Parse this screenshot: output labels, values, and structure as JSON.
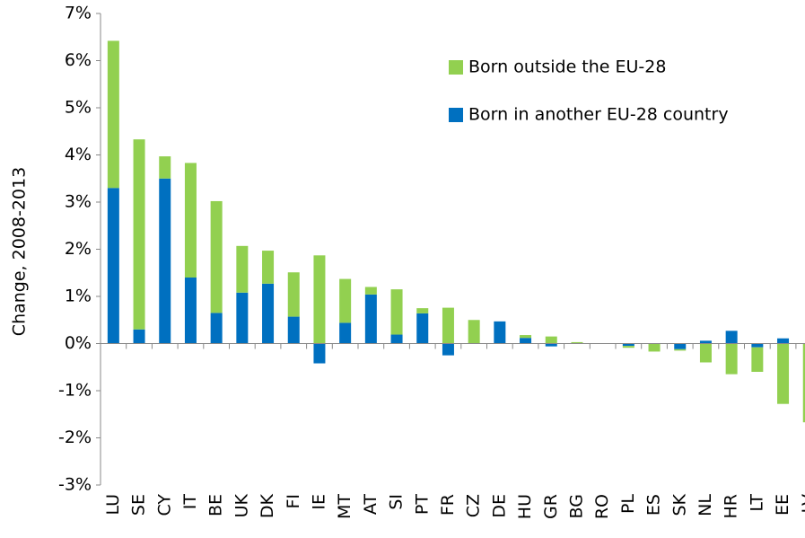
{
  "chart_data": {
    "type": "bar",
    "stacked": true,
    "y_label": "Change, 2008-2013",
    "categories": [
      "LU",
      "SE",
      "CY",
      "IT",
      "BE",
      "UK",
      "DK",
      "FI",
      "IE",
      "MT",
      "AT",
      "SI",
      "PT",
      "FR",
      "CZ",
      "DE",
      "HU",
      "GR",
      "BG",
      "RO",
      "PL",
      "ES",
      "SK",
      "NL",
      "HR",
      "LT",
      "EE",
      "LV"
    ],
    "series": [
      {
        "name": "Born in another EU-28 country",
        "color": "#0070c0",
        "values": [
          3.3,
          0.3,
          3.5,
          1.4,
          0.65,
          1.08,
          1.27,
          0.57,
          -0.42,
          0.44,
          1.04,
          0.19,
          0.64,
          -0.25,
          0,
          0.47,
          0.12,
          -0.06,
          0,
          0,
          -0.05,
          0,
          -0.12,
          0.06,
          0.27,
          -0.08,
          0.11,
          0
        ]
      },
      {
        "name": "Born outside the EU-28",
        "color": "#92d050",
        "values": [
          3.12,
          4.03,
          0.47,
          2.43,
          2.37,
          0.99,
          0.7,
          0.94,
          1.87,
          0.93,
          0.16,
          0.96,
          0.11,
          0.76,
          0.5,
          0,
          0.06,
          0.15,
          0.03,
          0,
          -0.04,
          -0.17,
          -0.03,
          -0.4,
          -0.65,
          -0.52,
          -1.28,
          -1.67
        ]
      }
    ],
    "ylim": [
      -3,
      7
    ],
    "yticks": [
      {
        "value": -3,
        "label": "-3%"
      },
      {
        "value": -2,
        "label": "-2%"
      },
      {
        "value": -1,
        "label": "-1%"
      },
      {
        "value": 0,
        "label": "0%"
      },
      {
        "value": 1,
        "label": "1%"
      },
      {
        "value": 2,
        "label": "2%"
      },
      {
        "value": 3,
        "label": "3%"
      },
      {
        "value": 4,
        "label": "4%"
      },
      {
        "value": 5,
        "label": "5%"
      },
      {
        "value": 6,
        "label": "6%"
      },
      {
        "value": 7,
        "label": "7%"
      }
    ],
    "legend_order": [
      1,
      0
    ]
  }
}
